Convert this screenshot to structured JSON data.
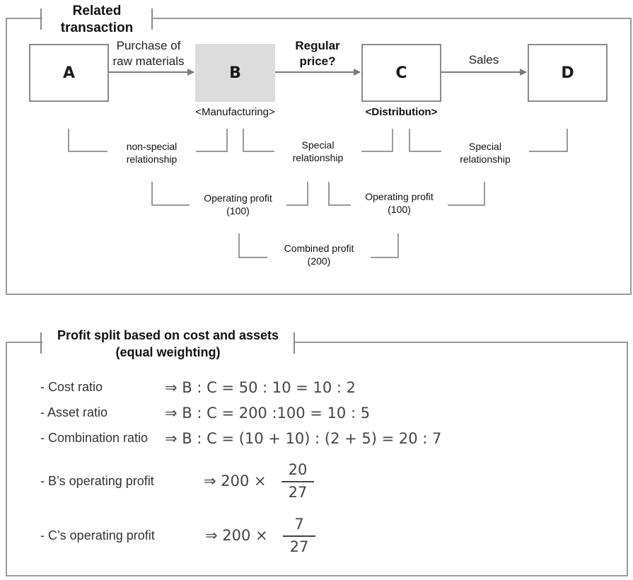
{
  "top": {
    "title_line1": "Related",
    "title_line2": "transaction",
    "nodes": {
      "a": "A",
      "b": "B",
      "c": "C",
      "d": "D"
    },
    "edges": {
      "ab_line1": "Purchase of",
      "ab_line2": "raw materials",
      "bc_line1": "Regular",
      "bc_line2": "price?",
      "cd": "Sales"
    },
    "b_sub": "<Manufacturing>",
    "c_sub": "<Distribution>",
    "relations": {
      "ab_line1": "non-special",
      "ab_line2": "relationship",
      "bc_line1": "Special",
      "bc_line2": "relationship",
      "cd_line1": "Special",
      "cd_line2": "relationship"
    },
    "profits": {
      "b_line1": "Operating profit",
      "b_line2": "(100)",
      "c_line1": "Operating profit",
      "c_line2": "(100)",
      "combined_line1": "Combined profit",
      "combined_line2": "(200)"
    }
  },
  "bottom": {
    "title_line1": "Profit split based on cost and assets",
    "title_line2": "(equal weighting)",
    "rows": [
      {
        "label": "- Cost ratio",
        "formula": "⇒ B : C = 50 : 10 = 10 : 2"
      },
      {
        "label": "- Asset ratio",
        "formula": "⇒ B : C = 200 :100 = 10 : 5"
      },
      {
        "label": "- Combination ratio",
        "formula": "⇒ B : C = (10 + 10) : (2 + 5) = 20 : 7"
      }
    ],
    "b_profit": {
      "label": "- B’s operating profit",
      "prefix": "⇒ 200 ×",
      "numerator": "20",
      "denominator": "27"
    },
    "c_profit": {
      "label": "- C’s operating profit",
      "prefix": "⇒ 200 ×",
      "numerator": "7",
      "denominator": "27"
    }
  }
}
